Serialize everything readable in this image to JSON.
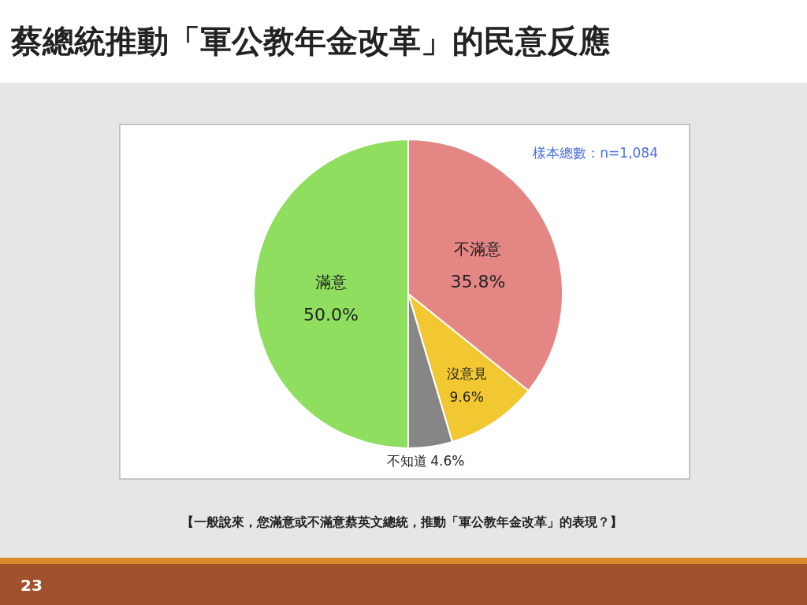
{
  "chart_data": {
    "type": "pie",
    "title": "蔡總統推動「軍公教年金改革」的民意反應",
    "categories": [
      "不滿意",
      "沒意見",
      "不知道",
      "滿意"
    ],
    "values": [
      35.8,
      9.6,
      4.6,
      50.0
    ],
    "colors": [
      "#e48684",
      "#f2c832",
      "#868686",
      "#8fde60"
    ],
    "value_labels": [
      "35.8%",
      "9.6%",
      "4.6%",
      "50.0%"
    ],
    "annotations": [
      "樣本總數：n=1,084",
      "【一般說來，您滿意或不滿意蔡英文總統，推動「軍公教年金改革」的表現？】",
      "23"
    ]
  }
}
